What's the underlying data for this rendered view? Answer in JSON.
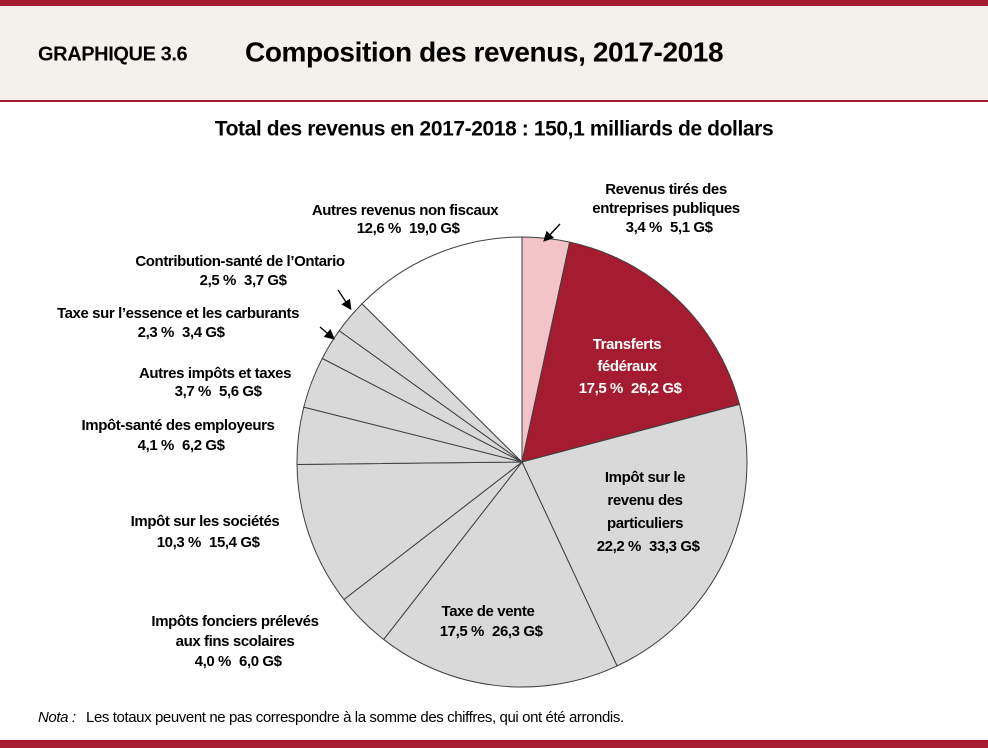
{
  "header": {
    "label": "GRAPHIQUE 3.6",
    "title": "Composition des revenus, 2017-2018"
  },
  "chart_data": {
    "type": "pie",
    "title": "Total des revenus en 2017-2018 : 150,1 milliards de dollars",
    "categories": [
      [
        "Revenus tirés des",
        "entreprises publiques"
      ],
      [
        "Transferts",
        "fédéraux"
      ],
      [
        "Impôt sur le",
        "revenu des",
        "particuliers"
      ],
      [
        "Taxe de vente"
      ],
      [
        "Impôts fonciers prélevés",
        "aux fins scolaires"
      ],
      [
        "Impôt sur les sociétés"
      ],
      [
        "Impôt-santé des employeurs"
      ],
      [
        "Autres impôts et taxes"
      ],
      [
        "Taxe sur l’essence et les carburants"
      ],
      [
        "Contribution-santé de l’Ontario"
      ],
      [
        "Autres revenus non fiscaux"
      ]
    ],
    "values": [
      3.4,
      17.5,
      22.2,
      17.5,
      4.0,
      10.3,
      4.1,
      3.7,
      2.3,
      2.5,
      12.6
    ],
    "value_labels": [
      "3,4 %",
      "17,5 %",
      "22,2 %",
      "17,5 %",
      "4,0 %",
      "10,3 %",
      "4,1 %",
      "3,7 %",
      "2,3 %",
      "2,5 %",
      "12,6 %"
    ],
    "amounts": [
      5.1,
      26.2,
      33.3,
      26.3,
      6.0,
      15.4,
      6.2,
      5.6,
      3.4,
      3.7,
      19.0
    ],
    "amount_labels": [
      "5,1 G$",
      "26,2 G$",
      "33,3 G$",
      "26,3 G$",
      "6,0 G$",
      "15,4 G$",
      "6,2 G$",
      "5,6 G$",
      "3,4 G$",
      "3,7 G$",
      "19,0 G$"
    ],
    "colors": [
      "#f2c4c8",
      "#a51c30",
      "#d9d9d9",
      "#d9d9d9",
      "#d9d9d9",
      "#d9d9d9",
      "#d9d9d9",
      "#d9d9d9",
      "#d9d9d9",
      "#d9d9d9",
      "#ffffff"
    ]
  },
  "note": {
    "label": "Nota :",
    "text": "Les totaux peuvent ne pas correspondre à la somme des chiffres, qui ont été arrondis."
  }
}
